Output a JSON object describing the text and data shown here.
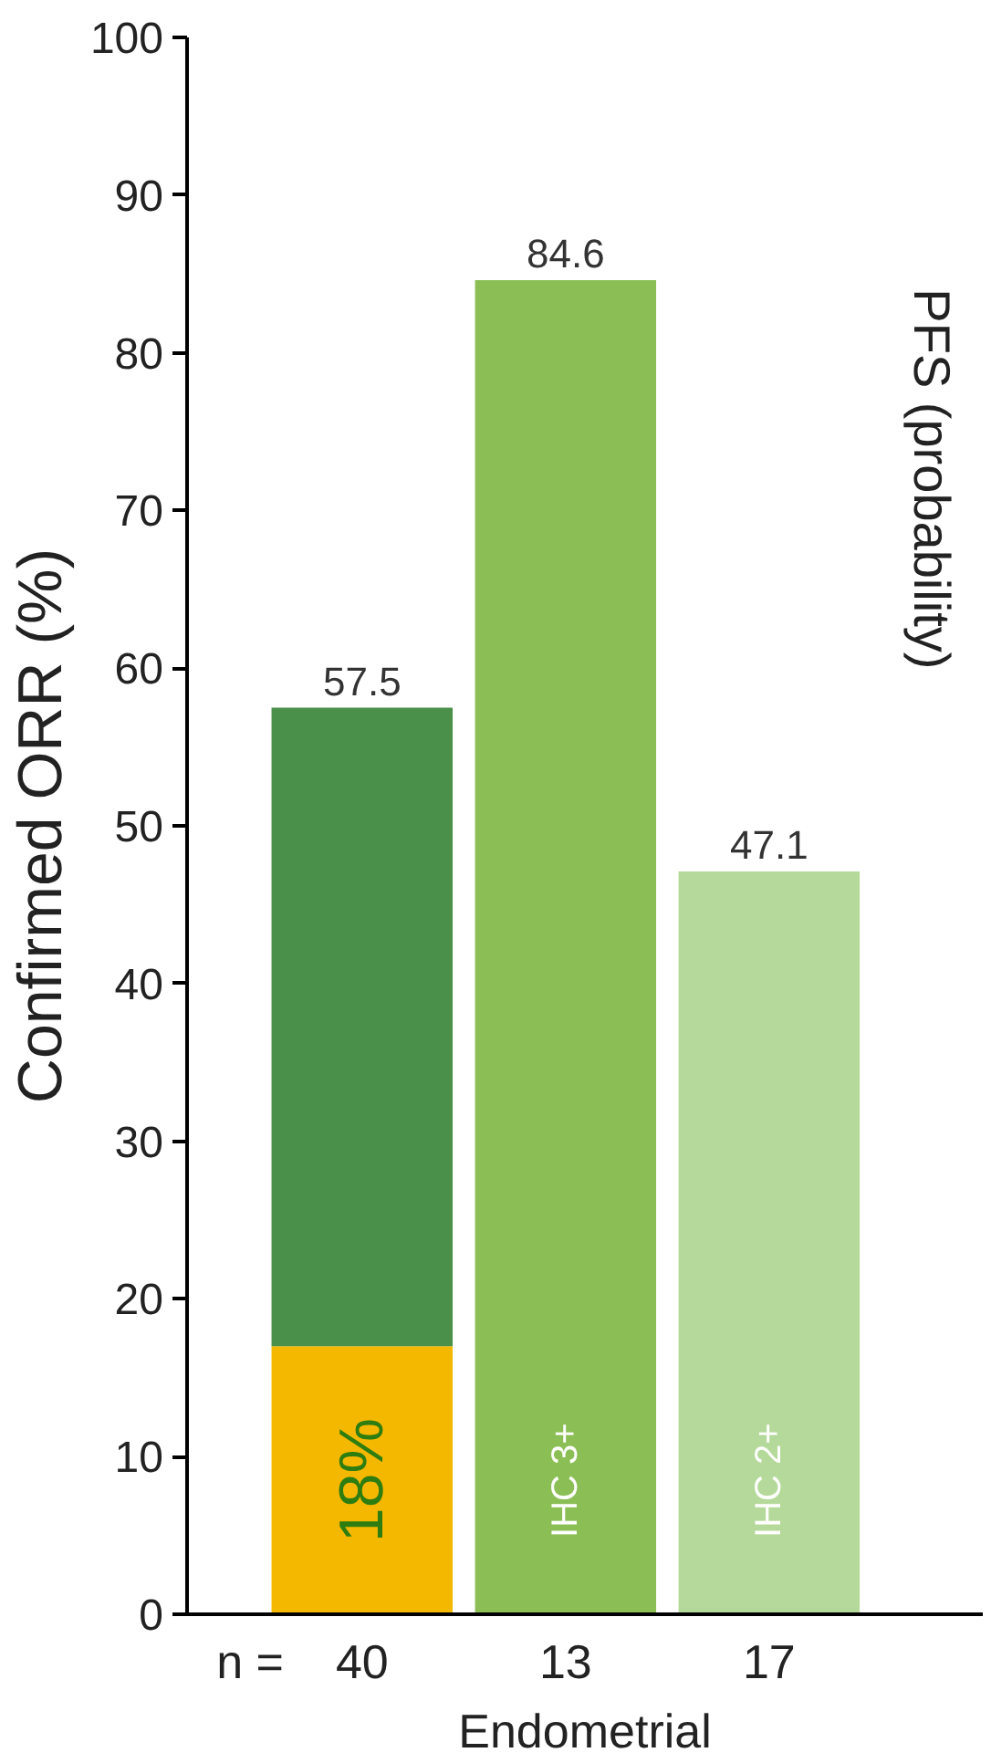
{
  "chart_data": {
    "type": "bar",
    "stacked": true,
    "xlabel": "Endometrial",
    "ylabel": "Confirmed ORR (%)",
    "categories": [
      "40",
      "13",
      "17"
    ],
    "series": [
      {
        "colors": [
          "#f5b800",
          "#8bbf55",
          "#b5d99a"
        ],
        "values": [
          17,
          84.6,
          47.1
        ]
      },
      {
        "color": "#4a8f4a",
        "values": [
          40.5,
          null,
          null
        ]
      }
    ],
    "totals": [
      "57.5",
      "84.6",
      "47.1"
    ],
    "ylim": [
      0,
      100
    ],
    "yticks": [
      0,
      10,
      20,
      30,
      40,
      50,
      60,
      70,
      80,
      90,
      100
    ],
    "grid": false,
    "annotations": [
      "18%",
      "IHC 3+",
      "IHC 2+",
      "n =",
      "PFS (probability)"
    ]
  }
}
